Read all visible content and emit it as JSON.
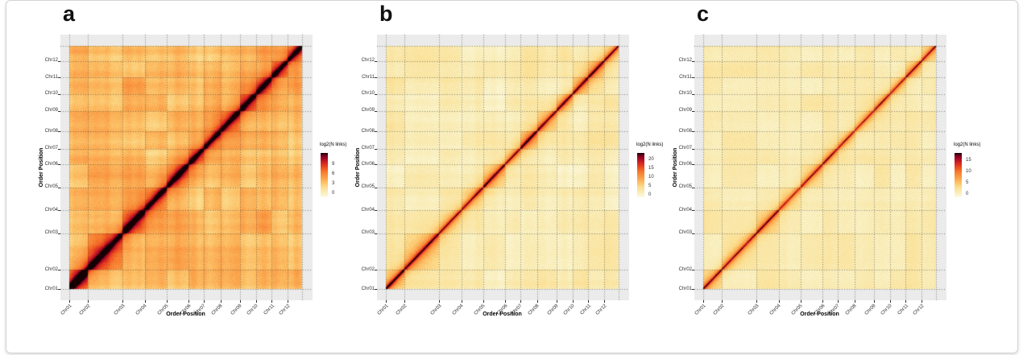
{
  "figure": {
    "background": "#ffffff",
    "border_color": "#d3d3d3",
    "panel_background": "#EBEBEB",
    "grid_color": "#2D2D2D"
  },
  "chart_data": {
    "type": "heatmap",
    "title": "",
    "xlabel": "Order Position",
    "ylabel": "Order Position",
    "categories": [
      "Chr01",
      "Chr02",
      "Chr03",
      "Chr04",
      "Chr05",
      "Chr06",
      "Chr07",
      "Chr08",
      "Chr09",
      "Chr10",
      "Chr11",
      "Chr12"
    ],
    "relative_sizes": [
      0.079,
      0.15,
      0.095,
      0.094,
      0.094,
      0.065,
      0.072,
      0.083,
      0.07,
      0.068,
      0.068,
      0.062
    ],
    "grid": "dotted lines at chromosome boundaries, both axes",
    "legend_position": "right",
    "colormap_stops": [
      [
        0.0,
        "#FDFAE1"
      ],
      [
        0.1,
        "#F9EEBB"
      ],
      [
        0.22,
        "#FBDF92"
      ],
      [
        0.34,
        "#FCBE63"
      ],
      [
        0.46,
        "#FA9A44"
      ],
      [
        0.57,
        "#F67B2E"
      ],
      [
        0.67,
        "#EC4F20"
      ],
      [
        0.77,
        "#D52721"
      ],
      [
        0.86,
        "#AC0B24"
      ],
      [
        0.93,
        "#7D0022"
      ],
      [
        1.0,
        "#140003"
      ]
    ],
    "panels": [
      {
        "label": "a",
        "legend": {
          "title": "log2(N links)",
          "ticks": [
            9,
            6,
            3,
            0
          ],
          "domain": [
            -1.2,
            12.4
          ]
        },
        "appearance": {
          "background_level": 0.37,
          "plaid_amplitude": 0.35,
          "block_amplitude": 0.07,
          "intra_amplitude": 0.3,
          "diag_amplitude": 0.66,
          "diag_width": 0.011,
          "seed": 101,
          "chr1_boost": 1.4
        }
      },
      {
        "label": "b",
        "legend": {
          "title": "log2(N links)",
          "ticks": [
            20,
            15,
            10,
            5,
            0
          ],
          "domain": [
            -1.5,
            23.8
          ]
        },
        "appearance": {
          "background_level": 0.125,
          "plaid_amplitude": 0.5,
          "block_amplitude": 0.05,
          "intra_amplitude": 0.22,
          "diag_amplitude": 0.58,
          "diag_width": 0.0075,
          "seed": 202,
          "chr1_boost": 1.15
        }
      },
      {
        "label": "c",
        "legend": {
          "title": "log2(N links)",
          "ticks": [
            15,
            10,
            5,
            0
          ],
          "domain": [
            -1.4,
            18.3
          ]
        },
        "appearance": {
          "background_level": 0.125,
          "plaid_amplitude": 0.32,
          "block_amplitude": 0.04,
          "intra_amplitude": 0.165,
          "diag_amplitude": 0.55,
          "diag_width": 0.0055,
          "seed": 303,
          "chr1_boost": 1.1
        }
      }
    ]
  }
}
